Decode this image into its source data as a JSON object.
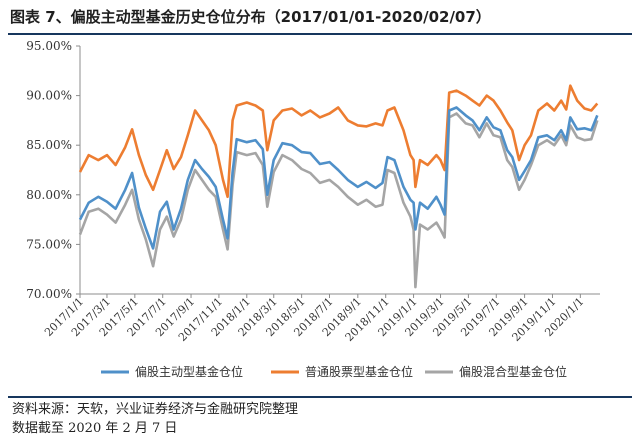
{
  "header": {
    "title": "图表 7、偏股主动型基金历史仓位分布（2017/01/01-2020/02/07）"
  },
  "footer": {
    "source": "资料来源：天软，兴业证券经济与金融研究院整理",
    "date_note": "数据截至 2020 年 2 月 7 日"
  },
  "chart_data": {
    "type": "line",
    "title": "",
    "xlabel": "",
    "ylabel": "",
    "ylim": [
      70,
      95
    ],
    "yticks": [
      70,
      75,
      80,
      85,
      90,
      95
    ],
    "ytick_labels": [
      "70.00%",
      "75.00%",
      "80.00%",
      "85.00%",
      "90.00%",
      "95.00%"
    ],
    "xticks": [
      "2017/1/1",
      "2017/3/1",
      "2017/5/1",
      "2017/7/1",
      "2017/9/1",
      "2017/11/1",
      "2018/1/1",
      "2018/3/1",
      "2018/5/1",
      "2018/7/1",
      "2018/9/1",
      "2018/11/1",
      "2019/1/1",
      "2019/3/1",
      "2019/5/1",
      "2019/7/1",
      "2019/9/1",
      "2019/11/1",
      "2020/1/1"
    ],
    "grid": false,
    "legend_position": "bottom",
    "series": [
      {
        "name": "偏股主动型基金仓位",
        "color": "#4f90c9",
        "points": [
          [
            "2017/1/1",
            77.5
          ],
          [
            "2017/1/20",
            79.2
          ],
          [
            "2017/2/10",
            79.8
          ],
          [
            "2017/3/1",
            79.3
          ],
          [
            "2017/3/20",
            78.6
          ],
          [
            "2017/4/10",
            80.5
          ],
          [
            "2017/4/25",
            82.2
          ],
          [
            "2017/5/10",
            78.7
          ],
          [
            "2017/5/25",
            76.6
          ],
          [
            "2017/6/10",
            74.6
          ],
          [
            "2017/6/25",
            78.3
          ],
          [
            "2017/7/10",
            79.3
          ],
          [
            "2017/7/25",
            76.5
          ],
          [
            "2017/8/10",
            78.6
          ],
          [
            "2017/8/25",
            81.5
          ],
          [
            "2017/9/10",
            83.5
          ],
          [
            "2017/9/25",
            82.6
          ],
          [
            "2017/10/10",
            81.8
          ],
          [
            "2017/10/25",
            80.8
          ],
          [
            "2017/11/10",
            77.5
          ],
          [
            "2017/11/20",
            75.6
          ],
          [
            "2017/12/1",
            82.3
          ],
          [
            "2017/12/10",
            85.6
          ],
          [
            "2018/1/1",
            85.3
          ],
          [
            "2018/1/20",
            85.5
          ],
          [
            "2018/2/5",
            84.6
          ],
          [
            "2018/2/15",
            80.0
          ],
          [
            "2018/3/1",
            83.5
          ],
          [
            "2018/3/20",
            85.2
          ],
          [
            "2018/4/10",
            85.0
          ],
          [
            "2018/5/1",
            84.3
          ],
          [
            "2018/5/20",
            84.2
          ],
          [
            "2018/6/10",
            83.1
          ],
          [
            "2018/7/1",
            83.3
          ],
          [
            "2018/7/20",
            82.5
          ],
          [
            "2018/8/10",
            81.5
          ],
          [
            "2018/9/1",
            80.8
          ],
          [
            "2018/9/20",
            81.3
          ],
          [
            "2018/10/10",
            80.7
          ],
          [
            "2018/10/25",
            81.2
          ],
          [
            "2018/11/5",
            83.8
          ],
          [
            "2018/11/20",
            83.5
          ],
          [
            "2018/12/10",
            80.8
          ],
          [
            "2018/12/25",
            79.5
          ],
          [
            "2019/1/1",
            79.2
          ],
          [
            "2019/1/5",
            76.5
          ],
          [
            "2019/1/15",
            79.2
          ],
          [
            "2019/2/1",
            78.6
          ],
          [
            "2019/2/20",
            79.8
          ],
          [
            "2019/3/1",
            79.0
          ],
          [
            "2019/3/10",
            78.0
          ],
          [
            "2019/3/20",
            88.5
          ],
          [
            "2019/4/5",
            88.8
          ],
          [
            "2019/4/25",
            88.0
          ],
          [
            "2019/5/10",
            87.5
          ],
          [
            "2019/5/25",
            86.5
          ],
          [
            "2019/6/10",
            87.8
          ],
          [
            "2019/6/25",
            86.8
          ],
          [
            "2019/7/10",
            86.5
          ],
          [
            "2019/7/25",
            84.5
          ],
          [
            "2019/8/5",
            83.8
          ],
          [
            "2019/8/20",
            81.5
          ],
          [
            "2019/9/1",
            82.4
          ],
          [
            "2019/9/15",
            83.5
          ],
          [
            "2019/10/1",
            85.8
          ],
          [
            "2019/10/20",
            86.0
          ],
          [
            "2019/11/5",
            85.5
          ],
          [
            "2019/11/20",
            86.5
          ],
          [
            "2019/12/1",
            85.5
          ],
          [
            "2019/12/10",
            87.8
          ],
          [
            "2019/12/25",
            86.6
          ],
          [
            "2020/1/10",
            86.7
          ],
          [
            "2020/1/25",
            86.5
          ],
          [
            "2020/2/7",
            88.0
          ]
        ]
      },
      {
        "name": "普通股票型基金仓位",
        "color": "#ed7d31",
        "points": [
          [
            "2017/1/1",
            82.3
          ],
          [
            "2017/1/20",
            84.0
          ],
          [
            "2017/2/10",
            83.5
          ],
          [
            "2017/3/1",
            84.0
          ],
          [
            "2017/3/20",
            83.0
          ],
          [
            "2017/4/10",
            84.8
          ],
          [
            "2017/4/25",
            86.6
          ],
          [
            "2017/5/10",
            84.0
          ],
          [
            "2017/5/25",
            82.0
          ],
          [
            "2017/6/10",
            80.5
          ],
          [
            "2017/6/25",
            82.5
          ],
          [
            "2017/7/10",
            84.5
          ],
          [
            "2017/7/25",
            82.6
          ],
          [
            "2017/8/10",
            83.8
          ],
          [
            "2017/8/25",
            86.0
          ],
          [
            "2017/9/10",
            88.5
          ],
          [
            "2017/9/25",
            87.5
          ],
          [
            "2017/10/10",
            86.5
          ],
          [
            "2017/10/25",
            85.0
          ],
          [
            "2017/11/10",
            81.5
          ],
          [
            "2017/11/20",
            79.8
          ],
          [
            "2017/12/1",
            87.5
          ],
          [
            "2017/12/10",
            89.0
          ],
          [
            "2018/1/1",
            89.3
          ],
          [
            "2018/1/20",
            89.0
          ],
          [
            "2018/2/5",
            88.5
          ],
          [
            "2018/2/15",
            84.5
          ],
          [
            "2018/3/1",
            87.5
          ],
          [
            "2018/3/20",
            88.5
          ],
          [
            "2018/4/10",
            88.7
          ],
          [
            "2018/5/1",
            88.0
          ],
          [
            "2018/5/20",
            88.5
          ],
          [
            "2018/6/10",
            87.8
          ],
          [
            "2018/7/1",
            88.2
          ],
          [
            "2018/7/20",
            88.8
          ],
          [
            "2018/8/10",
            87.5
          ],
          [
            "2018/9/1",
            87.0
          ],
          [
            "2018/9/20",
            86.9
          ],
          [
            "2018/10/10",
            87.2
          ],
          [
            "2018/10/25",
            87.0
          ],
          [
            "2018/11/5",
            88.5
          ],
          [
            "2018/11/20",
            88.8
          ],
          [
            "2018/12/10",
            86.5
          ],
          [
            "2018/12/25",
            84.0
          ],
          [
            "2019/1/1",
            83.5
          ],
          [
            "2019/1/5",
            80.8
          ],
          [
            "2019/1/15",
            83.5
          ],
          [
            "2019/2/1",
            83.0
          ],
          [
            "2019/2/20",
            84.0
          ],
          [
            "2019/3/1",
            83.5
          ],
          [
            "2019/3/10",
            82.5
          ],
          [
            "2019/3/20",
            90.3
          ],
          [
            "2019/4/5",
            90.5
          ],
          [
            "2019/4/25",
            90.0
          ],
          [
            "2019/5/10",
            89.5
          ],
          [
            "2019/5/25",
            89.0
          ],
          [
            "2019/6/10",
            90.0
          ],
          [
            "2019/6/25",
            89.5
          ],
          [
            "2019/7/10",
            88.5
          ],
          [
            "2019/7/25",
            87.3
          ],
          [
            "2019/8/5",
            86.5
          ],
          [
            "2019/8/20",
            83.5
          ],
          [
            "2019/9/1",
            85.0
          ],
          [
            "2019/9/15",
            86.0
          ],
          [
            "2019/10/1",
            88.5
          ],
          [
            "2019/10/20",
            89.2
          ],
          [
            "2019/11/5",
            88.5
          ],
          [
            "2019/11/20",
            89.5
          ],
          [
            "2019/12/1",
            88.6
          ],
          [
            "2019/12/10",
            91.0
          ],
          [
            "2019/12/25",
            89.5
          ],
          [
            "2020/1/10",
            88.7
          ],
          [
            "2020/1/25",
            88.5
          ],
          [
            "2020/2/7",
            89.2
          ]
        ]
      },
      {
        "name": "偏股混合型基金仓位",
        "color": "#a5a5a5",
        "points": [
          [
            "2017/1/1",
            76.0
          ],
          [
            "2017/1/20",
            78.3
          ],
          [
            "2017/2/10",
            78.6
          ],
          [
            "2017/3/1",
            78.0
          ],
          [
            "2017/3/20",
            77.2
          ],
          [
            "2017/4/10",
            79.0
          ],
          [
            "2017/4/25",
            80.5
          ],
          [
            "2017/5/10",
            77.5
          ],
          [
            "2017/5/25",
            75.5
          ],
          [
            "2017/6/10",
            72.8
          ],
          [
            "2017/6/25",
            76.5
          ],
          [
            "2017/7/10",
            77.8
          ],
          [
            "2017/7/25",
            75.8
          ],
          [
            "2017/8/10",
            77.5
          ],
          [
            "2017/8/25",
            80.5
          ],
          [
            "2017/9/10",
            82.5
          ],
          [
            "2017/9/25",
            81.5
          ],
          [
            "2017/10/10",
            80.5
          ],
          [
            "2017/10/25",
            79.8
          ],
          [
            "2017/11/10",
            76.5
          ],
          [
            "2017/11/20",
            74.5
          ],
          [
            "2017/12/1",
            81.0
          ],
          [
            "2017/12/10",
            84.3
          ],
          [
            "2018/1/1",
            84.0
          ],
          [
            "2018/1/20",
            84.2
          ],
          [
            "2018/2/5",
            83.0
          ],
          [
            "2018/2/15",
            78.8
          ],
          [
            "2018/3/1",
            82.3
          ],
          [
            "2018/3/20",
            84.0
          ],
          [
            "2018/4/10",
            83.5
          ],
          [
            "2018/5/1",
            82.6
          ],
          [
            "2018/5/20",
            82.2
          ],
          [
            "2018/6/10",
            81.2
          ],
          [
            "2018/7/1",
            81.5
          ],
          [
            "2018/7/20",
            80.8
          ],
          [
            "2018/8/10",
            79.8
          ],
          [
            "2018/9/1",
            79.0
          ],
          [
            "2018/9/20",
            79.5
          ],
          [
            "2018/10/10",
            78.8
          ],
          [
            "2018/10/25",
            79.0
          ],
          [
            "2018/11/5",
            82.5
          ],
          [
            "2018/11/20",
            82.2
          ],
          [
            "2018/12/10",
            79.2
          ],
          [
            "2018/12/25",
            77.8
          ],
          [
            "2019/1/1",
            76.5
          ],
          [
            "2019/1/5",
            70.7
          ],
          [
            "2019/1/15",
            77.0
          ],
          [
            "2019/2/1",
            76.5
          ],
          [
            "2019/2/20",
            77.2
          ],
          [
            "2019/3/1",
            76.5
          ],
          [
            "2019/3/10",
            75.7
          ],
          [
            "2019/3/20",
            87.8
          ],
          [
            "2019/4/5",
            88.2
          ],
          [
            "2019/4/25",
            87.2
          ],
          [
            "2019/5/10",
            87.0
          ],
          [
            "2019/5/25",
            85.8
          ],
          [
            "2019/6/10",
            87.2
          ],
          [
            "2019/6/25",
            86.0
          ],
          [
            "2019/7/10",
            85.8
          ],
          [
            "2019/7/25",
            83.5
          ],
          [
            "2019/8/5",
            82.8
          ],
          [
            "2019/8/20",
            80.5
          ],
          [
            "2019/9/1",
            81.5
          ],
          [
            "2019/9/15",
            83.0
          ],
          [
            "2019/10/1",
            85.0
          ],
          [
            "2019/10/20",
            85.5
          ],
          [
            "2019/11/5",
            85.0
          ],
          [
            "2019/11/20",
            86.0
          ],
          [
            "2019/12/1",
            85.0
          ],
          [
            "2019/12/10",
            87.0
          ],
          [
            "2019/12/25",
            85.8
          ],
          [
            "2020/1/10",
            85.5
          ],
          [
            "2020/1/25",
            85.6
          ],
          [
            "2020/2/7",
            87.5
          ]
        ]
      }
    ]
  }
}
